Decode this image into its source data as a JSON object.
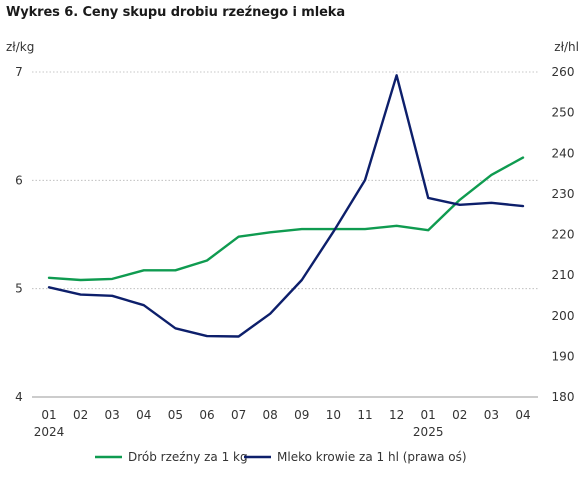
{
  "title": "Wykres 6. Ceny skupu drobiu rzeźnego i mleka",
  "chart_data": {
    "type": "line",
    "title": "Wykres 6. Ceny skupu drobiu rzeźnego i mleka",
    "left_axis_unit": "zł/kg",
    "right_axis_unit": "zł/hl",
    "categories": [
      "01",
      "02",
      "03",
      "04",
      "05",
      "06",
      "07",
      "08",
      "09",
      "10",
      "11",
      "12",
      "01",
      "02",
      "03",
      "04"
    ],
    "year_labels": [
      {
        "index": 0,
        "label": "2024"
      },
      {
        "index": 12,
        "label": "2025"
      }
    ],
    "y_left": {
      "min": 4,
      "max": 7,
      "ticks": [
        "4",
        "5",
        "6",
        "7"
      ]
    },
    "y_right": {
      "min": 180,
      "max": 260,
      "ticks": [
        "180",
        "190",
        "200",
        "210",
        "220",
        "230",
        "240",
        "250",
        "260"
      ]
    },
    "grid": true,
    "legend_position": "bottom",
    "series": [
      {
        "name": "Drób rzeźny za 1 kg",
        "axis": "left",
        "color": "#0f9b50",
        "values": [
          5.1,
          5.08,
          5.09,
          5.17,
          5.17,
          5.26,
          5.48,
          5.52,
          5.55,
          5.55,
          5.55,
          5.58,
          5.54,
          5.82,
          6.05,
          6.21
        ]
      },
      {
        "name": "Mleko krowie za 1 hl (prawa oś)",
        "axis": "right",
        "color": "#0d1f6b",
        "values": [
          207.0,
          205.2,
          204.9,
          202.6,
          196.9,
          195.0,
          194.9,
          200.5,
          208.8,
          220.7,
          233.4,
          259.2,
          229.0,
          227.3,
          227.8,
          227.0
        ]
      }
    ]
  }
}
